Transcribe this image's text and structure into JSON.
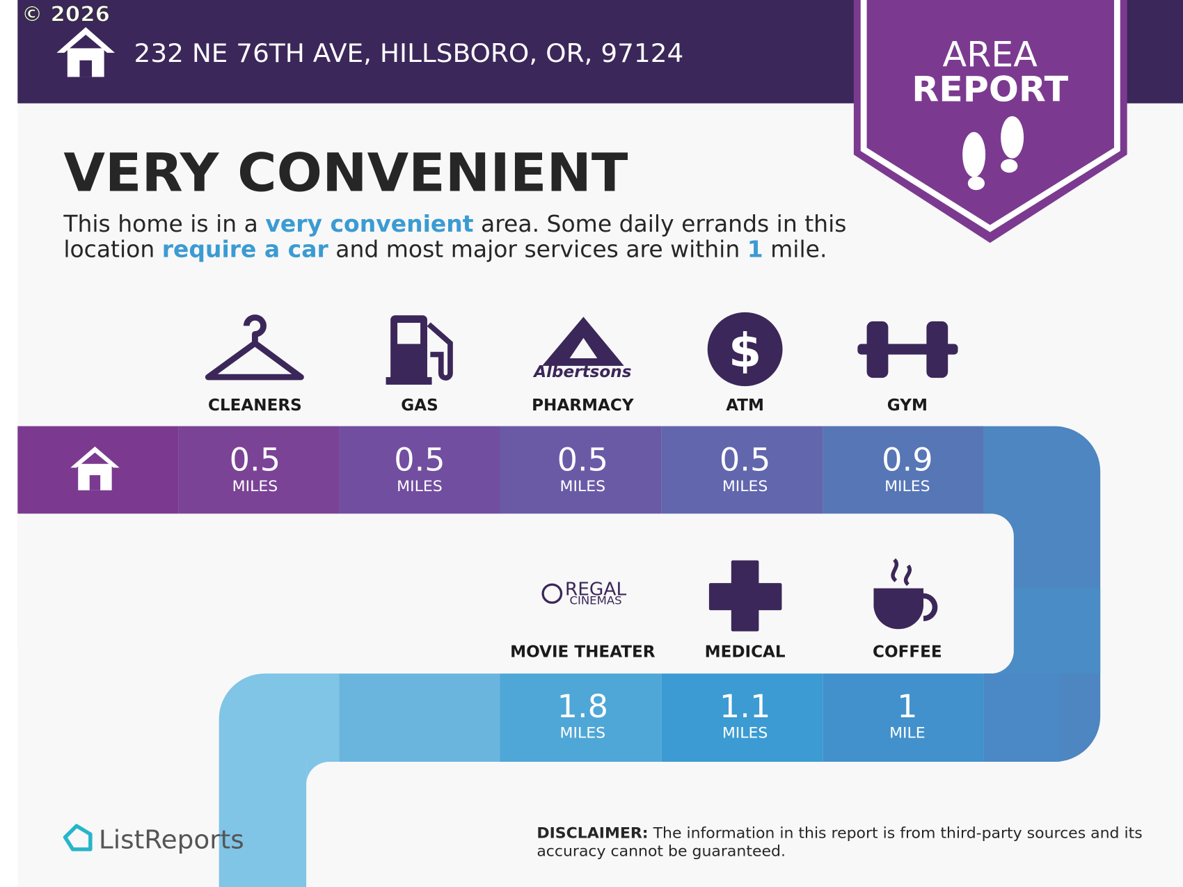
{
  "copyright": "© 2026",
  "header": {
    "address": "232 NE 76TH AVE, HILLSBORO, OR, 97124",
    "badge": [
      "AREA",
      "REPORT"
    ]
  },
  "headline": "VERY CONVENIENT",
  "summary": [
    [
      {
        "text": "This home is in a ",
        "emphasis": false
      },
      {
        "text": "very convenient",
        "emphasis": true
      },
      {
        "text": " area. Some daily errands in this",
        "emphasis": false
      }
    ],
    [
      {
        "text": "location ",
        "emphasis": false
      },
      {
        "text": "require a car",
        "emphasis": true
      },
      {
        "text": " and most major services are within ",
        "emphasis": false
      },
      {
        "text": "1",
        "emphasis": true
      },
      {
        "text": " mile.",
        "emphasis": false
      }
    ]
  ],
  "amenities": [
    {
      "label": "CLEANERS",
      "distance": 0.5,
      "unit": "MILES"
    },
    {
      "label": "GAS",
      "distance": 0.5,
      "unit": "MILES"
    },
    {
      "label": "PHARMACY",
      "distance": 0.5,
      "unit": "MILES",
      "logo": [
        "Albertsons"
      ]
    },
    {
      "label": "ATM",
      "distance": 0.5,
      "unit": "MILES",
      "logo": [
        "$"
      ]
    },
    {
      "label": "GYM",
      "distance": 0.9,
      "unit": "MILES"
    },
    {
      "label": "MOVIE THEATER",
      "distance": 1.8,
      "unit": "MILES",
      "logo": [
        "REGAL",
        "CINEMAS"
      ]
    },
    {
      "label": "MEDICAL",
      "distance": 1.1,
      "unit": "MILES"
    },
    {
      "label": "COFFEE",
      "distance": 1,
      "unit": "MILE"
    }
  ],
  "footer": {
    "brand": "ListReports",
    "disclaimer": {
      "label": "DISCLAIMER:",
      "text": [
        "The information in this report is from third-party sources and its",
        "accuracy cannot be guaranteed."
      ]
    }
  }
}
